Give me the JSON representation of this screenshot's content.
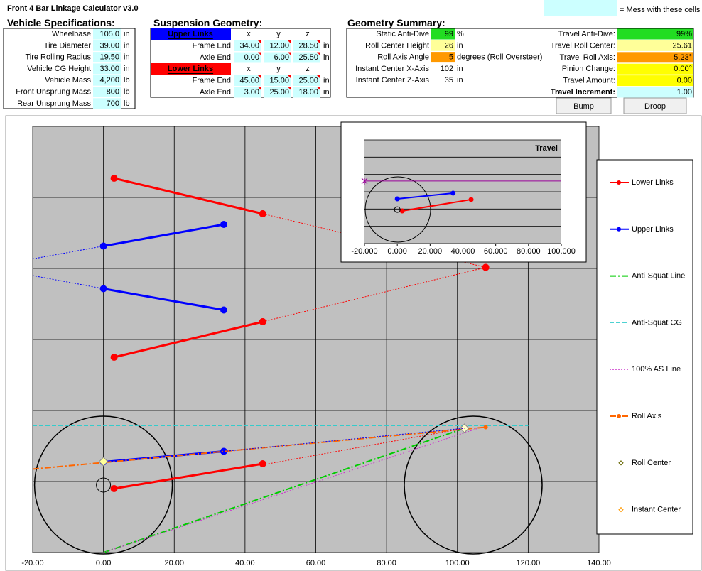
{
  "title": "Front 4 Bar Linkage Calculator v3.0",
  "note": "= Mess with these cells",
  "vehicle_specs": {
    "heading": "Vehicle Specifications:",
    "rows": [
      [
        "Wheelbase",
        "105.0",
        "in"
      ],
      [
        "Tire Diameter",
        "39.00",
        "in"
      ],
      [
        "Tire Rolling Radius",
        "19.50",
        "in"
      ],
      [
        "Vehicle CG Height",
        "33.00",
        "in"
      ],
      [
        "Vehicle Mass",
        "4,200",
        "lb"
      ],
      [
        "Front Unsprung Mass",
        "800",
        "lb"
      ],
      [
        "Rear Unsprung Mass",
        "700",
        "lb"
      ]
    ]
  },
  "suspension_geometry": {
    "heading": "Suspension Geometry:",
    "groups": [
      {
        "name": "Upper Links",
        "columns": [
          "x",
          "y",
          "z"
        ],
        "rows": [
          [
            "Frame End",
            "34.00",
            "12.00",
            "28.50",
            "in"
          ],
          [
            "Axle End",
            "0.00",
            "6.00",
            "25.50",
            "in"
          ]
        ]
      },
      {
        "name": "Lower Links",
        "columns": [
          "x",
          "y",
          "z"
        ],
        "rows": [
          [
            "Frame End",
            "45.00",
            "15.00",
            "25.00",
            "in"
          ],
          [
            "Axle End",
            "3.00",
            "25.00",
            "18.00",
            "in"
          ]
        ]
      }
    ]
  },
  "geometry_summary": {
    "heading": "Geometry Summary:",
    "left": [
      [
        "Static Anti-Dive",
        "99",
        "%"
      ],
      [
        "Roll Center Height",
        "26",
        "in"
      ],
      [
        "Roll Axis Angle",
        "5",
        "degrees (Roll Oversteer)"
      ],
      [
        "Instant Center X-Axis",
        "102",
        "in"
      ],
      [
        "Instant Center Z-Axis",
        "35",
        "in"
      ]
    ],
    "right": [
      [
        "Travel Anti-Dive:",
        "99%"
      ],
      [
        "Travel Roll Center:",
        "25.61"
      ],
      [
        "Travel Roll Axis:",
        "5.23°"
      ],
      [
        "Pinion Change:",
        "0.00°"
      ],
      [
        "Travel Amount:",
        "0.00"
      ],
      [
        "Travel Increment:",
        "1.00"
      ]
    ]
  },
  "buttons": [
    "Bump",
    "Droop"
  ],
  "chart_data": [
    {
      "type": "line",
      "xlim": [
        -20,
        140
      ],
      "ylim": [
        0,
        120
      ],
      "legend": "right",
      "xticks": [
        {
          "value": -20,
          "label": "-20.00"
        },
        {
          "value": 0,
          "label": "0.00"
        },
        {
          "value": 20,
          "label": "20.00"
        },
        {
          "value": 40,
          "label": "40.00"
        },
        {
          "value": 60,
          "label": "60.00"
        },
        {
          "value": 80,
          "label": "80.00"
        },
        {
          "value": 100,
          "label": "100.00"
        },
        {
          "value": 120,
          "label": "120.00"
        },
        {
          "value": 140,
          "label": "140.00"
        }
      ],
      "ygrid": [
        0,
        20,
        40,
        60,
        80,
        100,
        120
      ],
      "series": [
        {
          "name": "Lower Links",
          "color": "#ff0000",
          "style": "solid",
          "marker": "circle",
          "x": [
            3,
            45
          ],
          "values": [
            18,
            25
          ]
        },
        {
          "name": "Upper Links",
          "color": "#0000ff",
          "style": "solid",
          "marker": "circle",
          "x": [
            0,
            34
          ],
          "values": [
            25.5,
            28.5
          ]
        },
        {
          "name": "Anti-Squat Line",
          "color": "#00cc00",
          "style": "dashdot",
          "x": [
            0,
            102
          ],
          "values": [
            0,
            35
          ]
        },
        {
          "name": "Anti-Squat CG",
          "color": "#33cccc",
          "style": "dashed",
          "x": [
            -20,
            120
          ],
          "values": [
            35.7,
            35.7
          ]
        },
        {
          "name": "100% AS Line",
          "color": "#cc33cc",
          "style": "dotted",
          "x": [
            0,
            108
          ],
          "values": [
            0,
            35.7
          ]
        },
        {
          "name": "Roll Axis",
          "color": "#ff6600",
          "style": "dashdot",
          "marker": "dot",
          "x": [
            -20,
            108
          ],
          "values": [
            23.5,
            35.3
          ]
        },
        {
          "name": "Roll Center",
          "color": "#ffff99",
          "style": "none",
          "marker": "diamond",
          "x": [
            0
          ],
          "values": [
            25.61
          ]
        },
        {
          "name": "Instant Center",
          "color": "#ffffcc",
          "style": "none",
          "marker": "diamond",
          "x": [
            102
          ],
          "values": [
            35
          ]
        },
        {
          "color": "#ff0000",
          "style": "solid",
          "marker": "circle",
          "x": [
            3,
            45
          ],
          "values": [
            105.4,
            95.4
          ]
        },
        {
          "color": "#ff0000",
          "style": "dotted",
          "marker": "circle",
          "x": [
            45,
            108
          ],
          "values": [
            95.4,
            80.3
          ]
        },
        {
          "color": "#0000ff",
          "style": "solid",
          "marker": "circle",
          "x": [
            0,
            34
          ],
          "values": [
            86.3,
            92.4
          ]
        },
        {
          "color": "#0000ff",
          "style": "dotted",
          "x": [
            -20,
            0
          ],
          "values": [
            82.7,
            86.3
          ]
        },
        {
          "color": "#0000ff",
          "style": "solid",
          "marker": "circle",
          "x": [
            0,
            34
          ],
          "values": [
            74.3,
            68.3
          ]
        },
        {
          "color": "#0000ff",
          "style": "dotted",
          "x": [
            -20,
            0
          ],
          "values": [
            78,
            74.3
          ]
        },
        {
          "color": "#ff0000",
          "style": "solid",
          "marker": "circle",
          "x": [
            3,
            45
          ],
          "values": [
            55,
            65
          ]
        },
        {
          "color": "#ff0000",
          "style": "dotted",
          "marker": "circle",
          "x": [
            45,
            108
          ],
          "values": [
            65,
            80.3
          ]
        },
        {
          "color": "#ff0000",
          "style": "dotted",
          "x": [
            45,
            102
          ],
          "values": [
            24.7,
            35
          ]
        },
        {
          "color": "#0000ff",
          "style": "dotted",
          "x": [
            34,
            102
          ],
          "values": [
            28.5,
            35
          ]
        }
      ]
    },
    {
      "type": "line",
      "title": "Travel",
      "xlim": [
        -20,
        100
      ],
      "ylim": [
        0,
        60
      ],
      "xticks": [
        {
          "value": -20,
          "label": "-20.000"
        },
        {
          "value": 0,
          "label": "0.000"
        },
        {
          "value": 20,
          "label": "20.000"
        },
        {
          "value": 40,
          "label": "40.000"
        },
        {
          "value": 60,
          "label": "60.000"
        },
        {
          "value": 80,
          "label": "80.000"
        },
        {
          "value": 100,
          "label": "100.000"
        }
      ],
      "ygrid": [
        0,
        10,
        20,
        30,
        40,
        50,
        60
      ],
      "series": [
        {
          "color": "#0000ff",
          "style": "solid",
          "marker": "small",
          "x": [
            0,
            34
          ],
          "values": [
            25.9,
            29.2
          ]
        },
        {
          "color": "#ff0000",
          "style": "solid",
          "marker": "small",
          "x": [
            3,
            45
          ],
          "values": [
            18.9,
            25.5
          ]
        },
        {
          "color": "#990099",
          "style": "thin",
          "x": [
            -20,
            100
          ],
          "values": [
            36.2,
            36.2
          ]
        },
        {
          "color": "#990099",
          "style": "none",
          "marker": "star",
          "x": [
            -20
          ],
          "values": [
            36.2
          ]
        },
        {
          "color": "#000000",
          "style": "none",
          "marker": "ring",
          "x": [
            0
          ],
          "values": [
            19.7
          ]
        }
      ]
    }
  ]
}
